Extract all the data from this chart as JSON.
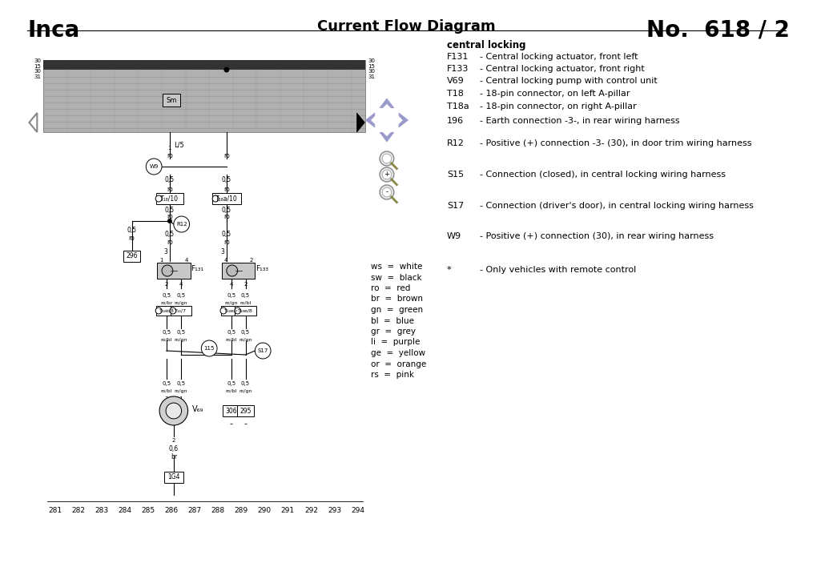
{
  "title_left": "Inca",
  "title_center": "Current Flow Diagram",
  "title_right": "No.  618 / 2",
  "bg_color": "#ffffff",
  "legend_title": "central locking",
  "legend_items": [
    {
      "code": "F131",
      "desc": "- Central locking actuator, front left"
    },
    {
      "code": "F133",
      "desc": "- Central locking actuator, front right"
    },
    {
      "code": "V69",
      "desc": "- Central locking pump with control unit"
    },
    {
      "code": "T18",
      "desc": "- 18-pin connector, on left A-pillar"
    },
    {
      "code": "T18a",
      "desc": "- 18-pin connector, on right A-pillar"
    },
    {
      "code": "196",
      "desc": "- Earth connection -3-, in rear wiring harness"
    },
    {
      "code": "R12",
      "desc": "- Positive (+) connection -3- (30), in door trim wiring harness"
    },
    {
      "code": "S15",
      "desc": "- Connection (closed), in central locking wiring harness"
    },
    {
      "code": "S17",
      "desc": "- Connection (driver's door), in central locking wiring harness"
    },
    {
      "code": "W9",
      "desc": "- Positive (+) connection (30), in rear wiring harness"
    },
    {
      "code": "*",
      "desc": "- Only vehicles with remote control"
    }
  ],
  "color_legend": [
    [
      "ws",
      "white"
    ],
    [
      "sw",
      "black"
    ],
    [
      "ro",
      "red"
    ],
    [
      "br",
      "brown"
    ],
    [
      "gn",
      "green"
    ],
    [
      "bl",
      "blue"
    ],
    [
      "gr",
      "grey"
    ],
    [
      "li",
      "purple"
    ],
    [
      "ge",
      "yellow"
    ],
    [
      "or",
      "orange"
    ],
    [
      "rs",
      "pink"
    ]
  ],
  "bottom_numbers": [
    "281",
    "282",
    "283",
    "284",
    "285",
    "286",
    "287",
    "288",
    "289",
    "290",
    "291",
    "292",
    "293",
    "294"
  ],
  "top_numbers_left": [
    "30",
    "15",
    "30",
    "31"
  ],
  "top_numbers_right": [
    "30",
    "15",
    "30",
    "31"
  ]
}
